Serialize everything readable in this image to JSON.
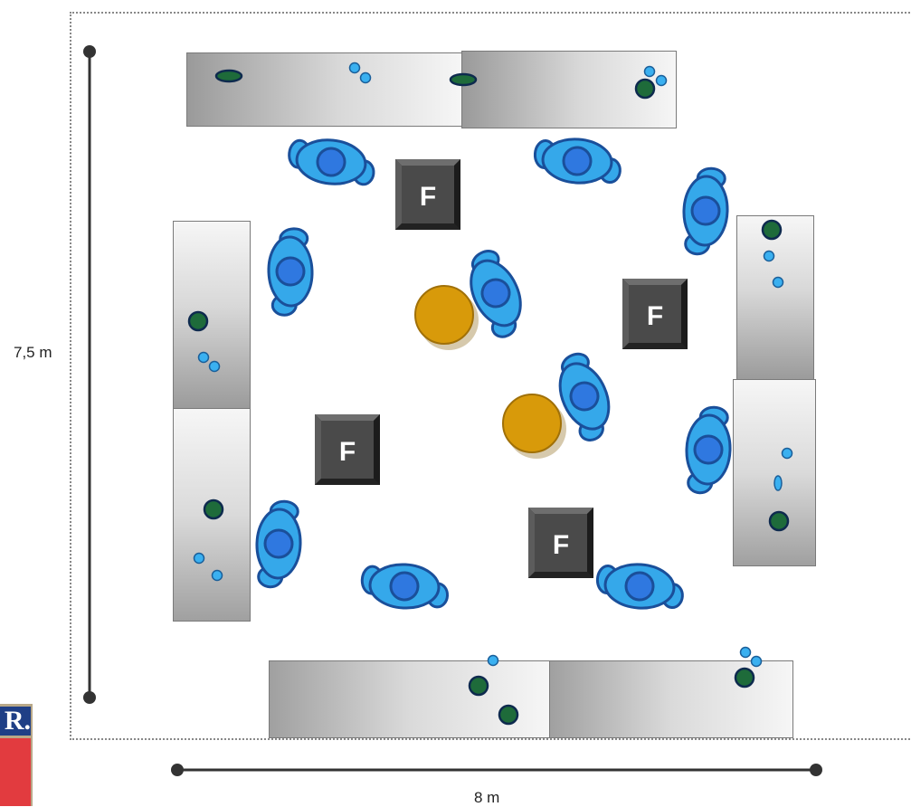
{
  "dimensions": {
    "height_label": "7,5 m",
    "width_label": "8 m"
  },
  "furniture": {
    "ferrite_marker": "F",
    "ferrite_count": 4,
    "round_table_count": 2,
    "seat_pair_count": 10,
    "bench_count": 8
  },
  "badge": {
    "text": "R."
  },
  "colors": {
    "seat_fill": "#35a8ea",
    "seat_stroke": "#1a4f9a",
    "seat_center": "#2f78e0",
    "round_table": "#d89a0a",
    "ferrite_box": "#4a4a4a",
    "dark_dot": "#1e6b3a",
    "light_dot": "#3ab0f0"
  }
}
